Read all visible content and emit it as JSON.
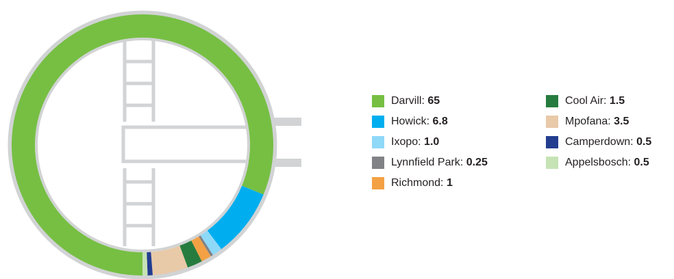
{
  "chart_data": {
    "type": "donut",
    "series": [
      {
        "name": "Darvill:",
        "color": "#76bf43",
        "values": [
          65
        ]
      },
      {
        "name": "Howick:",
        "color": "#00aeef",
        "values": [
          6.8
        ]
      },
      {
        "name": "Ixopo:",
        "color": "#8ed8f8",
        "values": [
          1
        ],
        "value_labels": [
          "1.0"
        ]
      },
      {
        "name": "Lynnfield Park:",
        "color": "#808285",
        "values": [
          0.25
        ]
      },
      {
        "name": "Richmond:",
        "color": "#f3a144",
        "values": [
          1
        ]
      },
      {
        "name": "Cool Air:",
        "color": "#267c3e",
        "values": [
          1.5
        ]
      },
      {
        "name": "Mpofana:",
        "color": "#e8c9a8",
        "values": [
          3.5
        ]
      },
      {
        "name": "Camperdown:",
        "color": "#233d8f",
        "values": [
          0.5
        ]
      },
      {
        "name": "Appelsbosch:",
        "color": "#c6e3b5",
        "values": [
          0.5
        ]
      }
    ]
  }
}
